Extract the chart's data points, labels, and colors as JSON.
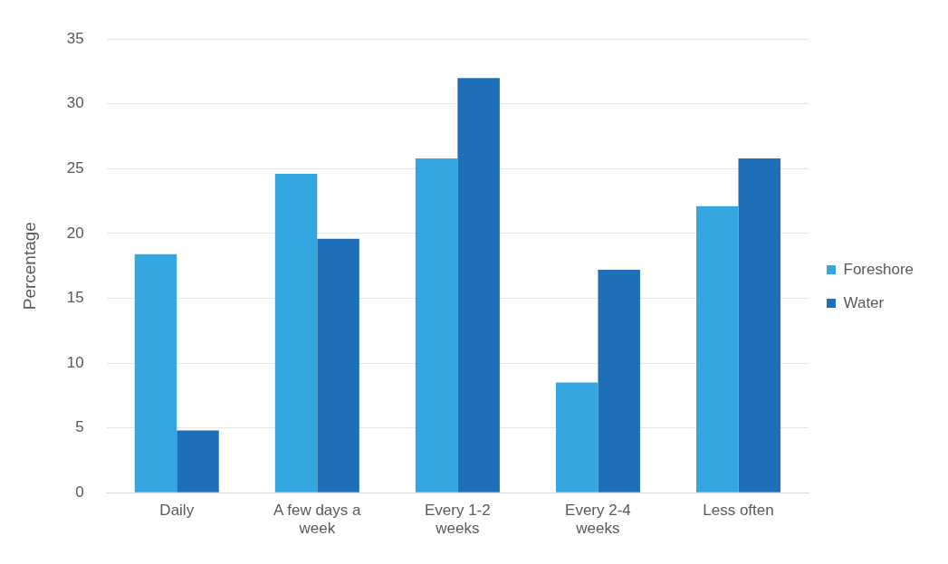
{
  "chart_data": {
    "type": "bar",
    "ylabel": "Percentage",
    "categories": [
      "Daily",
      "A few days a week",
      "Every 1-2 weeks",
      "Every 2-4 weeks",
      "Less often"
    ],
    "series": [
      {
        "name": "Foreshore",
        "color": "#35a7e0",
        "values": [
          18.4,
          24.6,
          25.8,
          8.5,
          22.1
        ]
      },
      {
        "name": "Water",
        "color": "#1f6fb8",
        "values": [
          4.8,
          19.6,
          32.0,
          17.2,
          25.8
        ]
      }
    ],
    "ylim": [
      0,
      35
    ],
    "yticks": [
      0,
      5,
      10,
      15,
      20,
      25,
      30,
      35
    ],
    "grid": "y",
    "legend": "right"
  }
}
